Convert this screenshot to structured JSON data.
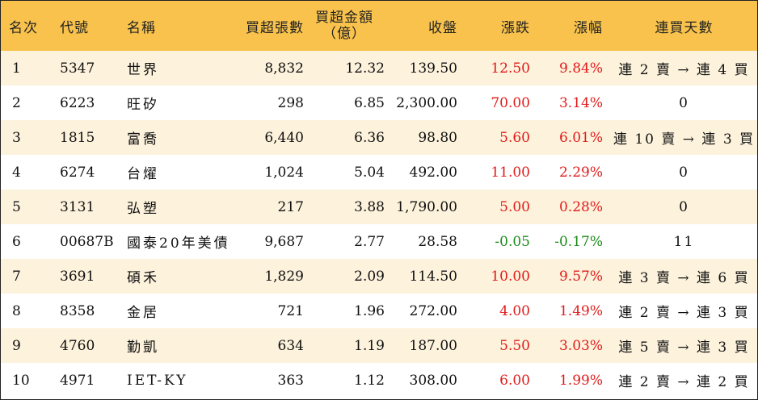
{
  "headers": {
    "rank": "名次",
    "code": "代號",
    "name": "名稱",
    "lots": "買超張數",
    "amount_line1": "買超金額",
    "amount_line2": "（億）",
    "close": "收盤",
    "change": "漲跌",
    "pct": "漲幅",
    "streak": "連買天數"
  },
  "rows": [
    {
      "rank": "1",
      "code": "5347",
      "name": "世界",
      "lots": "8,832",
      "amount": "12.32",
      "close": "139.50",
      "change": "12.50",
      "pct": "9.84%",
      "streak": "連 2 賣 → 連 4 買",
      "dir": "up"
    },
    {
      "rank": "2",
      "code": "6223",
      "name": "旺矽",
      "lots": "298",
      "amount": "6.85",
      "close": "2,300.00",
      "change": "70.00",
      "pct": "3.14%",
      "streak": "0",
      "dir": "up"
    },
    {
      "rank": "3",
      "code": "1815",
      "name": "富喬",
      "lots": "6,440",
      "amount": "6.36",
      "close": "98.80",
      "change": "5.60",
      "pct": "6.01%",
      "streak": "連 10 賣 → 連 3 買",
      "dir": "up"
    },
    {
      "rank": "4",
      "code": "6274",
      "name": "台燿",
      "lots": "1,024",
      "amount": "5.04",
      "close": "492.00",
      "change": "11.00",
      "pct": "2.29%",
      "streak": "0",
      "dir": "up"
    },
    {
      "rank": "5",
      "code": "3131",
      "name": "弘塑",
      "lots": "217",
      "amount": "3.88",
      "close": "1,790.00",
      "change": "5.00",
      "pct": "0.28%",
      "streak": "0",
      "dir": "up"
    },
    {
      "rank": "6",
      "code": "00687B",
      "name": "國泰20年美債",
      "lots": "9,687",
      "amount": "2.77",
      "close": "28.58",
      "change": "-0.05",
      "pct": "-0.17%",
      "streak": "11",
      "dir": "down"
    },
    {
      "rank": "7",
      "code": "3691",
      "name": "碩禾",
      "lots": "1,829",
      "amount": "2.09",
      "close": "114.50",
      "change": "10.00",
      "pct": "9.57%",
      "streak": "連 3 賣 → 連 6 買",
      "dir": "up"
    },
    {
      "rank": "8",
      "code": "8358",
      "name": "金居",
      "lots": "721",
      "amount": "1.96",
      "close": "272.00",
      "change": "4.00",
      "pct": "1.49%",
      "streak": "連 2 賣 → 連 3 買",
      "dir": "up"
    },
    {
      "rank": "9",
      "code": "4760",
      "name": "勤凱",
      "lots": "634",
      "amount": "1.19",
      "close": "187.00",
      "change": "5.50",
      "pct": "3.03%",
      "streak": "連 5 賣 → 連 3 買",
      "dir": "up"
    },
    {
      "rank": "10",
      "code": "4971",
      "name": "IET-KY",
      "lots": "363",
      "amount": "1.12",
      "close": "308.00",
      "change": "6.00",
      "pct": "1.99%",
      "streak": "連 2 賣 → 連 2 買",
      "dir": "up"
    }
  ],
  "colors": {
    "header_bg": "#f8c24c",
    "alt_row_bg": "#fdf2dc",
    "up": "#e01b1b",
    "down": "#1a8a1a"
  }
}
